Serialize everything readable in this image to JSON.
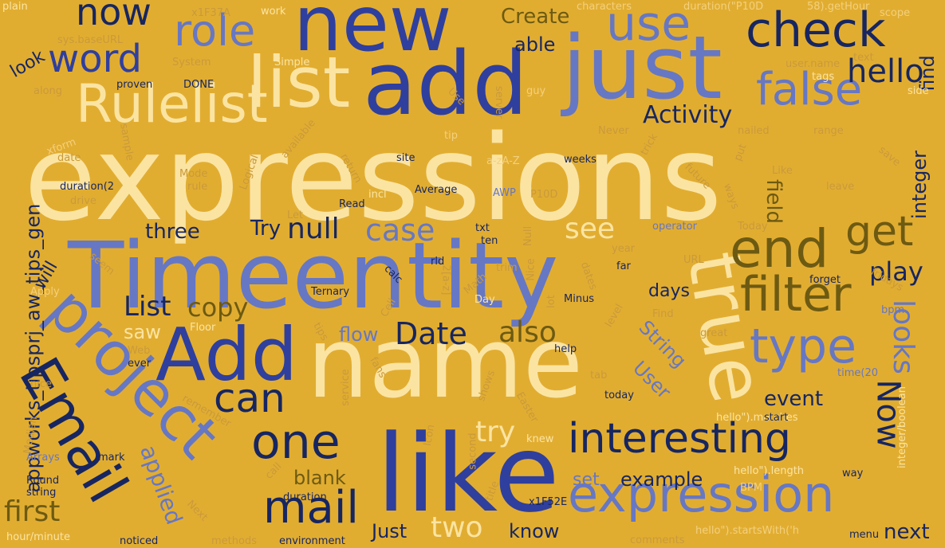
{
  "background": "#e1ad31",
  "palette": {
    "royal_blue": "#2f3f9e",
    "navy": "#172661",
    "periwinkle": "#6677c4",
    "cream": "#fbe4a2",
    "olive": "#6d5a12",
    "pale_gold": "#f4d07c",
    "muted_gold": "#c99a3a"
  },
  "words": [
    "expressions",
    "Timeentity",
    "add",
    "new",
    "name",
    "like",
    "just",
    "Add",
    "list",
    "Rulelist",
    "project",
    "Email",
    "true",
    "interesting",
    "expression",
    "filter",
    "end",
    "check",
    "use",
    "role",
    "word",
    "now",
    "false",
    "type",
    "one",
    "can",
    "get",
    "mail",
    "hello",
    "null",
    "case",
    "see",
    "Date",
    "Now",
    "copy",
    "also",
    "event",
    "play",
    "Activity",
    "List",
    "looks",
    "appworks_tipsprj_aw_tips_gen",
    "applied",
    "first",
    "two",
    "Just",
    "know",
    "next",
    "field",
    "integer",
    "Create",
    "able",
    "try",
    "three",
    "Try",
    "blank",
    "example",
    "saw",
    "flow",
    "set",
    "days",
    "String",
    "User",
    "find",
    "will",
    "look",
    "sys.baseURL",
    "System",
    "Simple",
    "work",
    "characters",
    "duration(\"P10D",
    "58).getHour",
    "scope",
    "plain",
    "x1F37A",
    "proven",
    "DONE",
    "along",
    "Use",
    "server",
    "guy",
    "text",
    "user.name",
    "tags",
    "side",
    "xform",
    "date",
    "sample",
    "Mode",
    "rule",
    "duration(2",
    "drive",
    "Logical",
    "return",
    "site",
    "a-zA-Z",
    "weeks",
    "Never",
    "nailed",
    "range",
    "trick",
    "put",
    "save",
    "Like",
    "leave",
    "ways",
    "future",
    "Today",
    "operator",
    "txt",
    "ten",
    "P10D",
    "incl",
    "Average",
    "AWP",
    "tip",
    "available",
    "Read",
    "Let",
    "seem",
    "Apply",
    "Ternary",
    "calc",
    "rld",
    "2[a-z]",
    "Cell",
    "Math",
    "trim",
    "Nice",
    "lot",
    "Null",
    "dates",
    "year",
    "far",
    "URL",
    "fridays",
    "forget",
    "Minus",
    "Day",
    "bpm",
    "Find",
    "level",
    "great",
    "Floor",
    "tips",
    "Web",
    "ever",
    "help",
    "tab",
    "time(20",
    "nice",
    "fans",
    "service",
    "shows",
    "Easter",
    "today",
    "remember",
    "hello\").matches",
    "start",
    "Median",
    "Icon",
    "knew",
    "integer/boolean",
    "Arrays",
    "mark",
    "second",
    "Round",
    "string",
    "call",
    "title",
    "hello\").length",
    "BPM",
    "way",
    "Next",
    "x1F52E",
    "duration",
    "hour/minute",
    "noticed",
    "methods",
    "environment",
    "hello\").startsWith('h",
    "comments",
    "menu"
  ]
}
